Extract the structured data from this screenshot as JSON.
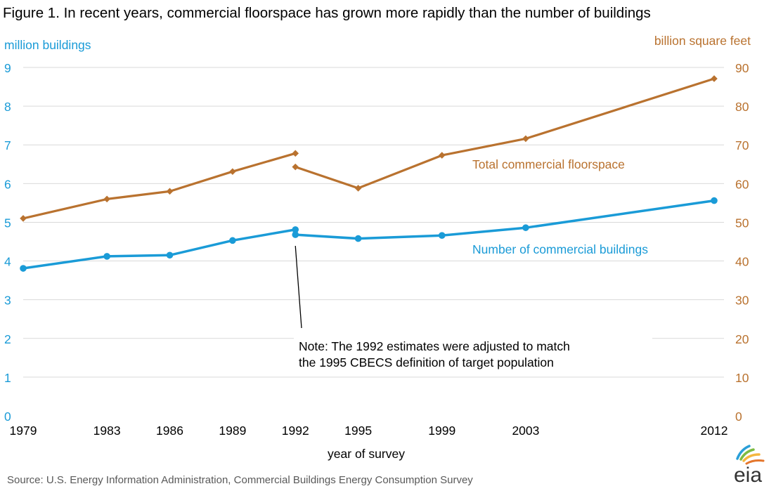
{
  "colors": {
    "buildings": "#1a9bd7",
    "floorspace": "#b9722f",
    "text": "#000000",
    "grid": "#d9d9d9",
    "source": "#595959"
  },
  "chart_data": {
    "type": "line",
    "title": "Figure 1.  In recent years, commercial floorspace has grown more rapidly than the number of buildings",
    "xlabel": "year of survey",
    "ylabel_left": "million  buildings",
    "ylabel_right": "billion  square feet",
    "x_ticks": [
      "1979",
      "1983",
      "1986",
      "1989",
      "1992",
      "1995",
      "1999",
      "2003",
      "2012"
    ],
    "ylim_left": [
      0,
      9
    ],
    "ylim_right": [
      0,
      90
    ],
    "left_ticks": [
      "0",
      "1",
      "2",
      "3",
      "4",
      "5",
      "6",
      "7",
      "8",
      "9"
    ],
    "right_ticks": [
      "0",
      "10",
      "20",
      "30",
      "40",
      "50",
      "60",
      "70",
      "80",
      "90"
    ],
    "grid": true,
    "series": [
      {
        "name": "Total commercial floorspace",
        "axis": "right",
        "marker": "diamond",
        "segments": [
          [
            [
              1979,
              51.0
            ],
            [
              1983,
              56.0
            ],
            [
              1986,
              58.0
            ],
            [
              1989,
              63.1
            ],
            [
              1992,
              67.8
            ]
          ],
          [
            [
              1992,
              64.3
            ],
            [
              1995,
              58.8
            ],
            [
              1999,
              67.3
            ],
            [
              2003,
              71.6
            ],
            [
              2012,
              87.1
            ]
          ]
        ]
      },
      {
        "name": "Number of commercial buildings",
        "axis": "left",
        "marker": "circle",
        "segments": [
          [
            [
              1979,
              3.81
            ],
            [
              1983,
              4.12
            ],
            [
              1986,
              4.15
            ],
            [
              1989,
              4.53
            ],
            [
              1992,
              4.81
            ]
          ],
          [
            [
              1992,
              4.68
            ],
            [
              1995,
              4.58
            ],
            [
              1999,
              4.66
            ],
            [
              2003,
              4.86
            ],
            [
              2012,
              5.56
            ]
          ]
        ]
      }
    ],
    "annotation": {
      "lines": [
        "Note: The 1992 estimates were adjusted to match",
        "the 1995 CBECS definition of target population"
      ],
      "anchor_year": 1992,
      "anchor_value": 4.68
    },
    "source": "Source: U.S. Energy Information Administration,  Commercial Buildings Energy Consumption Survey"
  },
  "logo_text": "eia"
}
